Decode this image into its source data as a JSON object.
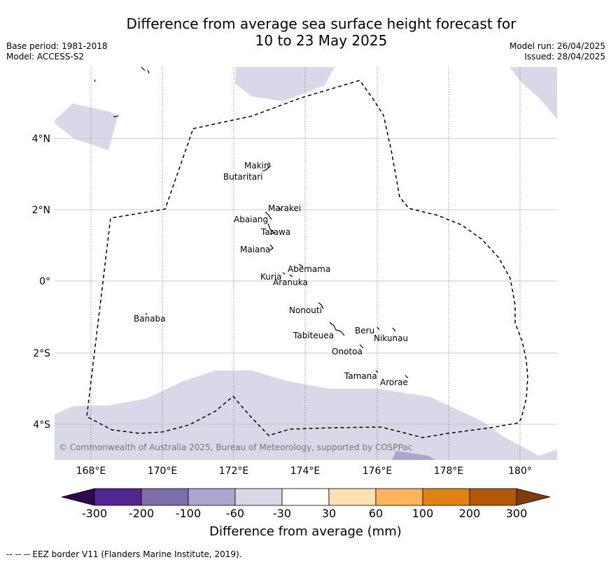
{
  "title": {
    "line1": "Difference from average sea surface height forecast for",
    "line2": "10 to 23 May 2025"
  },
  "meta_left": {
    "base_period": "Base period: 1981-2018",
    "model": "Model: ACCESS-S2"
  },
  "meta_right": {
    "model_run": "Model run: 26/04/2025",
    "issued": "Issued: 28/04/2025"
  },
  "map": {
    "lon_labels": [
      "168°E",
      "170°E",
      "172°E",
      "174°E",
      "176°E",
      "178°E",
      "180°"
    ],
    "lat_labels": [
      "4°N",
      "2°N",
      "0°",
      "2°S",
      "4°S"
    ],
    "place_labels": {
      "makin": "Makin",
      "butaritari": "Butaritari",
      "marakei": "Marakei",
      "abaiang": "Abaiang",
      "tarawa": "Tarawa",
      "maiana": "Maiana",
      "abemama": "Abemama",
      "kuria": "Kuria",
      "aranuka": "Aranuka",
      "nonouti": "Nonouti",
      "banaba": "Banaba",
      "tabiteuea": "Tabiteuea",
      "beru": "Beru",
      "nikunau": "Nikunau",
      "onotoa": "Onotoa",
      "tamana": "Tamana",
      "arorae": "Arorae"
    },
    "copyright": "© Commonwealth of Australia 2025, Bureau of Meteorology, supported by COSPPac"
  },
  "colorbar": {
    "tick_labels": [
      "-300",
      "-200",
      "-100",
      "-60",
      "-30",
      "30",
      "60",
      "100",
      "200",
      "300"
    ],
    "title": "Difference from average (mm)",
    "colors": [
      "#2d0a4e",
      "#54278f",
      "#7e6fab",
      "#aca6cf",
      "#d8d8e9",
      "#ffffff",
      "#fde0b4",
      "#fdb45b",
      "#e08214",
      "#b35806",
      "#7f3b08"
    ]
  },
  "footnote": "--  --  -- EEZ border V11 (Flanders Marine Institute, 2019)."
}
